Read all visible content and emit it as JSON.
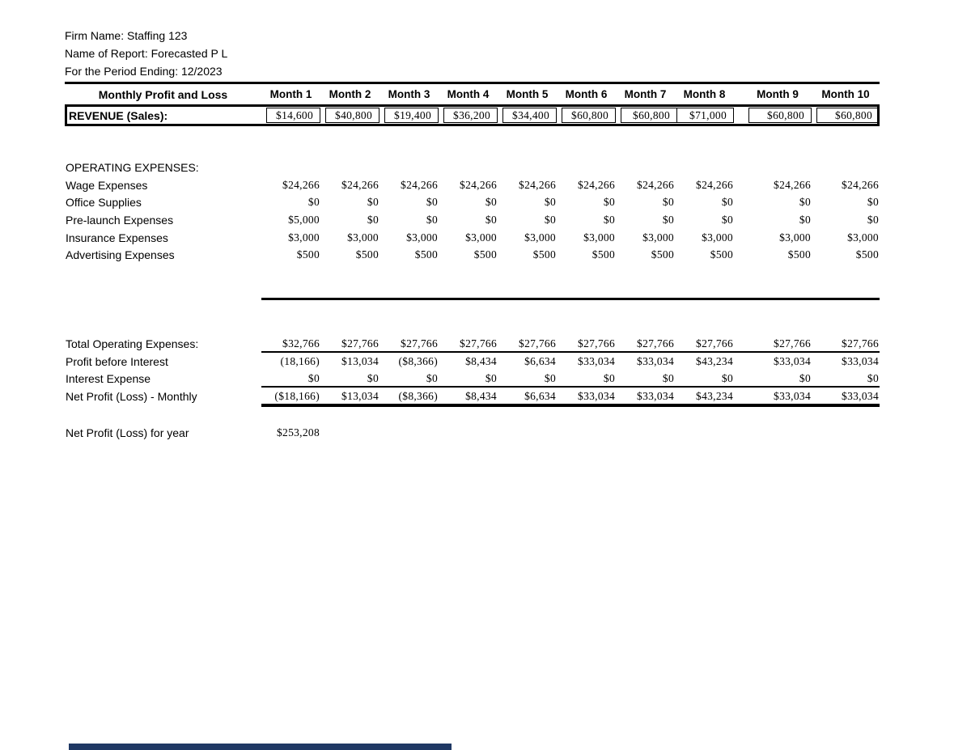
{
  "header": {
    "firm_name": "Firm Name: Staffing 123",
    "report_name": "Name of Report: Forecasted P L",
    "period": "For the Period Ending: 12/2023"
  },
  "table": {
    "title": "Monthly Profit and Loss",
    "month_headers": [
      "Month 1",
      "Month 2",
      "Month 3",
      "Month 4",
      "Month 5",
      "Month 6",
      "Month 7",
      "Month 8",
      "Month 9",
      "Month 10"
    ],
    "revenue": {
      "label": "REVENUE (Sales):",
      "values": [
        "$14,600",
        "$40,800",
        "$19,400",
        "$36,200",
        "$34,400",
        "$60,800",
        "$60,800",
        "$71,000",
        "$60,800",
        "$60,800"
      ]
    },
    "opex_heading": "OPERATING EXPENSES:",
    "expense_rows": [
      {
        "label": "Wage Expenses",
        "values": [
          "$24,266",
          "$24,266",
          "$24,266",
          "$24,266",
          "$24,266",
          "$24,266",
          "$24,266",
          "$24,266",
          "$24,266",
          "$24,266"
        ]
      },
      {
        "label": "Office Supplies",
        "values": [
          "$0",
          "$0",
          "$0",
          "$0",
          "$0",
          "$0",
          "$0",
          "$0",
          "$0",
          "$0"
        ]
      },
      {
        "label": "Pre-launch Expenses",
        "values": [
          "$5,000",
          "$0",
          "$0",
          "$0",
          "$0",
          "$0",
          "$0",
          "$0",
          "$0",
          "$0"
        ]
      },
      {
        "label": "Insurance Expenses",
        "values": [
          "$3,000",
          "$3,000",
          "$3,000",
          "$3,000",
          "$3,000",
          "$3,000",
          "$3,000",
          "$3,000",
          "$3,000",
          "$3,000"
        ]
      },
      {
        "label": "Advertising Expenses",
        "values": [
          "$500",
          "$500",
          "$500",
          "$500",
          "$500",
          "$500",
          "$500",
          "$500",
          "$500",
          "$500"
        ]
      }
    ],
    "totals_rows": [
      {
        "label": "Total Operating Expenses:",
        "values": [
          "$32,766",
          "$27,766",
          "$27,766",
          "$27,766",
          "$27,766",
          "$27,766",
          "$27,766",
          "$27,766",
          "$27,766",
          "$27,766"
        ]
      },
      {
        "label": "Profit before Interest",
        "values": [
          "(18,166)",
          "$13,034",
          "($8,366)",
          "$8,434",
          "$6,634",
          "$33,034",
          "$33,034",
          "$43,234",
          "$33,034",
          "$33,034"
        ]
      },
      {
        "label": "Interest Expense",
        "values": [
          "$0",
          "$0",
          "$0",
          "$0",
          "$0",
          "$0",
          "$0",
          "$0",
          "$0",
          "$0"
        ]
      },
      {
        "label": "Net Profit (Loss) - Monthly",
        "values": [
          "($18,166)",
          "$13,034",
          "($8,366)",
          "$8,434",
          "$6,634",
          "$33,034",
          "$33,034",
          "$43,234",
          "$33,034",
          "$33,034"
        ]
      }
    ],
    "year": {
      "label": "Net Profit (Loss)  for year",
      "value": "$253,208"
    }
  },
  "colors": {
    "background": "#ffffff",
    "text": "#000000",
    "bottom_bar": "#1f3864"
  }
}
